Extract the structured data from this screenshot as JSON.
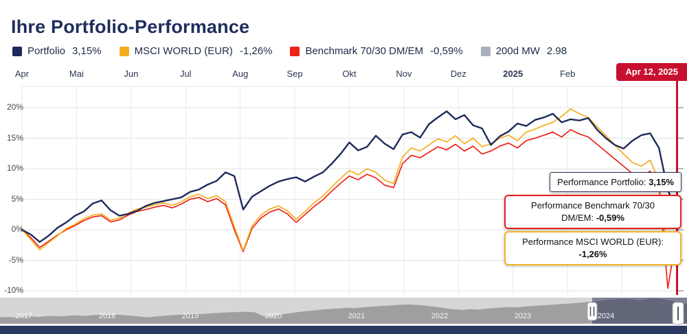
{
  "title": "Ihre Portfolio-Performance",
  "date_badge": "Apr 12, 2025",
  "legend": [
    {
      "label": "Portfolio",
      "value": "3,15%",
      "color": "#1e2a5a",
      "swatch": "solid"
    },
    {
      "label": "MSCI WORLD (EUR)",
      "value": "-1,26%",
      "color": "#f5ad1d",
      "swatch": "solid"
    },
    {
      "label": "Benchmark 70/30 DM/EM",
      "value": "-0,59%",
      "color": "#ee2118",
      "swatch": "solid"
    },
    {
      "label": "200d MW",
      "value": "2.98",
      "color": "#aab0ba",
      "swatch": "crossed"
    }
  ],
  "tooltips": {
    "portfolio": {
      "label": "Performance Portfolio:",
      "value": "3,15%",
      "border": "#2a3550"
    },
    "benchmark": {
      "line1": "Performance Benchmark 70/30",
      "label2": "DM/EM:",
      "value": "-0,59%",
      "border": "#e8211d"
    },
    "msci": {
      "line1": "Performance MSCI WORLD (EUR):",
      "value": "-1,26%",
      "border": "#f0b429"
    }
  },
  "chart_data": {
    "type": "line",
    "title": "Ihre Portfolio-Performance",
    "x_axis": {
      "labels": [
        "Apr",
        "Mai",
        "Jun",
        "Jul",
        "Aug",
        "Sep",
        "Okt",
        "Nov",
        "Dez",
        "2025",
        "Feb"
      ],
      "bold_label": "2025",
      "range": "Apr 2024 - Apr 12, 2025"
    },
    "y_axis": {
      "unit": "%",
      "ticks": [
        -10,
        -5,
        0,
        5,
        10,
        15,
        20
      ],
      "tick_labels": [
        "-10%",
        "-5%",
        "0%",
        "5%",
        "10%",
        "15%",
        "20%"
      ],
      "grid": true
    },
    "legend_position": "top",
    "marker": {
      "date": "Apr 12, 2025",
      "color": "#c8102e"
    },
    "series": [
      {
        "name": "Benchmark 70/30 DM/EM",
        "color": "#ee2118",
        "line_width": 1.7,
        "final_value": -0.59,
        "values": [
          0,
          -1.3,
          -2.9,
          -1.9,
          -0.9,
          0.0,
          0.7,
          1.5,
          2.1,
          2.3,
          1.3,
          1.6,
          2.4,
          3.0,
          3.3,
          3.7,
          4.0,
          3.6,
          4.2,
          5.0,
          5.3,
          4.6,
          5.1,
          4.1,
          0.0,
          -3.6,
          0.2,
          1.9,
          2.9,
          3.4,
          2.6,
          1.2,
          2.5,
          3.8,
          4.9,
          6.3,
          7.6,
          8.8,
          8.2,
          9.1,
          8.5,
          7.3,
          6.9,
          10.8,
          12.2,
          11.8,
          12.7,
          13.6,
          13.1,
          14.0,
          12.9,
          13.7,
          12.4,
          12.9,
          13.7,
          14.2,
          13.4,
          14.6,
          15.0,
          15.5,
          16.0,
          15.2,
          16.4,
          15.7,
          15.2,
          14.0,
          12.8,
          11.6,
          10.4,
          9.2,
          8.8,
          9.6,
          7.0,
          -9.6,
          -0.59
        ]
      },
      {
        "name": "MSCI WORLD (EUR)",
        "color": "#f5ad1d",
        "line_width": 1.7,
        "final_value": -1.26,
        "values": [
          0,
          -1.6,
          -3.3,
          -2.1,
          -1.0,
          0.2,
          0.9,
          1.8,
          2.4,
          2.6,
          1.6,
          1.9,
          2.7,
          3.4,
          3.7,
          4.1,
          4.4,
          4.0,
          4.6,
          5.4,
          5.8,
          5.1,
          5.6,
          4.6,
          0.5,
          -3.4,
          0.6,
          2.4,
          3.4,
          3.9,
          3.1,
          1.7,
          3.0,
          4.4,
          5.5,
          7.0,
          8.4,
          9.7,
          9.0,
          10.0,
          9.4,
          8.1,
          7.6,
          11.9,
          13.4,
          12.9,
          13.9,
          14.9,
          14.4,
          15.4,
          14.1,
          15.0,
          13.6,
          14.1,
          15.0,
          15.5,
          14.6,
          16.0,
          16.5,
          17.1,
          17.6,
          18.6,
          19.8,
          19.0,
          18.4,
          16.9,
          15.4,
          13.9,
          12.4,
          11.0,
          10.4,
          11.4,
          8.0,
          -5.2,
          -1.26
        ]
      },
      {
        "name": "Portfolio",
        "color": "#1e2a5a",
        "line_width": 2.4,
        "final_value": 3.15,
        "values": [
          0,
          -0.8,
          -2.0,
          -1.0,
          0.3,
          1.2,
          2.3,
          3.0,
          4.3,
          4.8,
          3.2,
          2.3,
          2.6,
          3.1,
          3.9,
          4.4,
          4.7,
          5.0,
          5.3,
          6.2,
          6.6,
          7.4,
          8.0,
          9.4,
          8.8,
          3.3,
          5.4,
          6.3,
          7.2,
          7.9,
          8.3,
          8.6,
          7.9,
          8.7,
          9.4,
          10.8,
          12.4,
          14.3,
          13.0,
          13.6,
          15.4,
          14.1,
          13.2,
          15.6,
          16.0,
          15.1,
          17.3,
          18.4,
          19.4,
          18.1,
          18.8,
          17.1,
          16.6,
          13.9,
          15.3,
          16.1,
          17.4,
          17.0,
          18.0,
          18.4,
          19.0,
          17.6,
          18.1,
          17.9,
          18.3,
          16.4,
          15.0,
          13.9,
          13.3,
          14.6,
          15.5,
          15.8,
          13.4,
          6.5,
          3.15
        ]
      }
    ],
    "moving_average": {
      "name": "200d MW",
      "value": 2.98,
      "visible": false
    },
    "navigator": {
      "years": [
        "2017",
        "2018",
        "2019",
        "2020",
        "2021",
        "2022",
        "2023",
        "2024"
      ],
      "selected_from_fraction": 0.862,
      "values": [
        25,
        26,
        24,
        27,
        28,
        26,
        29,
        30,
        28,
        31,
        32,
        30,
        33,
        34,
        32,
        35,
        33,
        31,
        28,
        25,
        27,
        30,
        32,
        34,
        36,
        38,
        37,
        39,
        41,
        43,
        44,
        45,
        46,
        44,
        30,
        26,
        33,
        38,
        42,
        46,
        49,
        52,
        55,
        57,
        59,
        61,
        60,
        63,
        65,
        67,
        69,
        71,
        73,
        74,
        72,
        70,
        66,
        62,
        58,
        55,
        53,
        56,
        54,
        58,
        60,
        62,
        64,
        63,
        66,
        68,
        70,
        72,
        74,
        76,
        78,
        80,
        83,
        86,
        89,
        92,
        94,
        96,
        93,
        90,
        95,
        97,
        94,
        88,
        80,
        75
      ]
    }
  }
}
